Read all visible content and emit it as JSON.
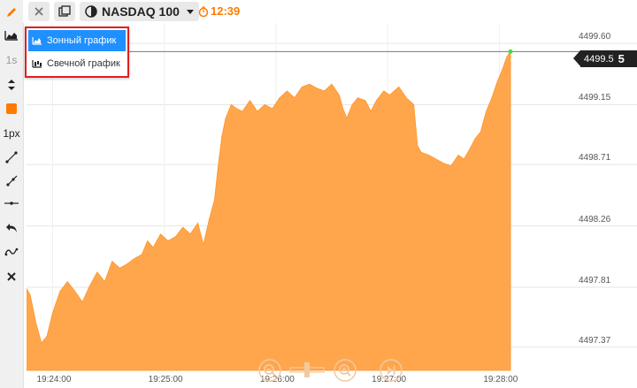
{
  "toolbar": {
    "items": [
      {
        "name": "pencil-icon"
      },
      {
        "name": "area-chart-icon"
      },
      {
        "name": "timeframe",
        "label": "1s"
      },
      {
        "name": "up-down-arrows-icon"
      },
      {
        "name": "color-swatch",
        "color": "#ff7a00"
      },
      {
        "name": "line-width",
        "label": "1px"
      },
      {
        "name": "trend-line-icon"
      },
      {
        "name": "ray-line-icon"
      },
      {
        "name": "horizontal-line-icon"
      },
      {
        "name": "undo-icon"
      },
      {
        "name": "wave-tool-icon"
      },
      {
        "name": "close-icon"
      }
    ]
  },
  "topbar": {
    "instrument": "NASDAQ 100",
    "timer": "12:39"
  },
  "dropdown": {
    "items": [
      {
        "label": "Зонный график",
        "active": true
      },
      {
        "label": "Свечной график",
        "active": false
      }
    ]
  },
  "price_tag": {
    "value": "4499.5",
    "digit": "5"
  },
  "colors": {
    "accent": "#ff7a00",
    "area_fill": "#ffa64d",
    "highlight": "#e02020",
    "menu_active": "#1e90ff"
  },
  "chart_data": {
    "type": "area",
    "x_labels": [
      "19:24:00",
      "19:25:00",
      "19:26:00",
      "19:27:00",
      "19:28:00"
    ],
    "y_labels": [
      "4499.60",
      "4499.15",
      "4498.71",
      "4498.26",
      "4497.81",
      "4497.37"
    ],
    "ylim": [
      4497.2,
      4499.62
    ],
    "x_seconds_range": [
      0,
      260
    ],
    "series": [
      {
        "values": [
          [
            0,
            4497.8
          ],
          [
            2,
            4497.75
          ],
          [
            5,
            4497.55
          ],
          [
            8,
            4497.4
          ],
          [
            11,
            4497.45
          ],
          [
            14,
            4497.62
          ],
          [
            18,
            4497.78
          ],
          [
            22,
            4497.85
          ],
          [
            26,
            4497.78
          ],
          [
            30,
            4497.7
          ],
          [
            34,
            4497.82
          ],
          [
            38,
            4497.92
          ],
          [
            42,
            4497.85
          ],
          [
            46,
            4498.0
          ],
          [
            50,
            4497.95
          ],
          [
            54,
            4497.98
          ],
          [
            58,
            4498.02
          ],
          [
            62,
            4498.05
          ],
          [
            65,
            4498.15
          ],
          [
            68,
            4498.1
          ],
          [
            72,
            4498.2
          ],
          [
            76,
            4498.15
          ],
          [
            80,
            4498.18
          ],
          [
            84,
            4498.25
          ],
          [
            88,
            4498.2
          ],
          [
            92,
            4498.28
          ],
          [
            95,
            4498.12
          ],
          [
            98,
            4498.3
          ],
          [
            101,
            4498.45
          ],
          [
            103,
            4498.7
          ],
          [
            105,
            4498.92
          ],
          [
            107,
            4499.05
          ],
          [
            110,
            4499.15
          ],
          [
            113,
            4499.12
          ],
          [
            116,
            4499.1
          ],
          [
            120,
            4499.18
          ],
          [
            124,
            4499.1
          ],
          [
            128,
            4499.15
          ],
          [
            132,
            4499.12
          ],
          [
            136,
            4499.2
          ],
          [
            140,
            4499.25
          ],
          [
            144,
            4499.2
          ],
          [
            148,
            4499.28
          ],
          [
            152,
            4499.3
          ],
          [
            156,
            4499.27
          ],
          [
            160,
            4499.25
          ],
          [
            164,
            4499.3
          ],
          [
            168,
            4499.22
          ],
          [
            170,
            4499.12
          ],
          [
            172,
            4499.05
          ],
          [
            175,
            4499.15
          ],
          [
            178,
            4499.2
          ],
          [
            182,
            4499.18
          ],
          [
            185,
            4499.1
          ],
          [
            188,
            4499.18
          ],
          [
            192,
            4499.25
          ],
          [
            195,
            4499.22
          ],
          [
            200,
            4499.28
          ],
          [
            204,
            4499.2
          ],
          [
            208,
            4499.15
          ],
          [
            210,
            4498.85
          ],
          [
            212,
            4498.8
          ],
          [
            216,
            4498.78
          ],
          [
            220,
            4498.75
          ],
          [
            224,
            4498.72
          ],
          [
            228,
            4498.7
          ],
          [
            232,
            4498.78
          ],
          [
            235,
            4498.75
          ],
          [
            238,
            4498.82
          ],
          [
            241,
            4498.9
          ],
          [
            244,
            4498.95
          ],
          [
            247,
            4499.1
          ],
          [
            250,
            4499.2
          ],
          [
            253,
            4499.32
          ],
          [
            256,
            4499.42
          ],
          [
            258,
            4499.5
          ],
          [
            260,
            4499.54
          ]
        ]
      }
    ]
  }
}
